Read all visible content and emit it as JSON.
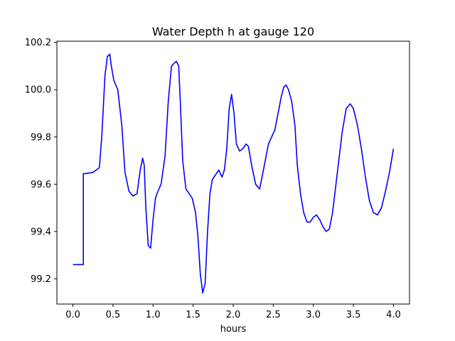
{
  "chart_data": {
    "type": "line",
    "title": "Water Depth h at gauge 120",
    "xlabel": "hours",
    "ylabel": "",
    "xlim": [
      -0.2,
      4.2
    ],
    "ylim": [
      99.093,
      100.205
    ],
    "xticks": [
      0.0,
      0.5,
      1.0,
      1.5,
      2.0,
      2.5,
      3.0,
      3.5,
      4.0
    ],
    "xtick_labels": [
      "0.0",
      "0.5",
      "1.0",
      "1.5",
      "2.0",
      "2.5",
      "3.0",
      "3.5",
      "4.0"
    ],
    "yticks": [
      99.2,
      99.4,
      99.6,
      99.8,
      100.0,
      100.2
    ],
    "ytick_labels": [
      "99.2",
      "99.4",
      "99.6",
      "99.8",
      "100.0",
      "100.2"
    ],
    "grid": false,
    "legend": "none",
    "series": [
      {
        "color": "#0000ff",
        "x": [
          0.0,
          0.13,
          0.13,
          0.16,
          0.25,
          0.33,
          0.36,
          0.4,
          0.43,
          0.46,
          0.48,
          0.51,
          0.56,
          0.61,
          0.65,
          0.7,
          0.75,
          0.8,
          0.84,
          0.87,
          0.89,
          0.91,
          0.94,
          0.97,
          1.0,
          1.03,
          1.06,
          1.1,
          1.15,
          1.19,
          1.23,
          1.26,
          1.29,
          1.32,
          1.34,
          1.37,
          1.41,
          1.45,
          1.49,
          1.53,
          1.56,
          1.59,
          1.62,
          1.65,
          1.68,
          1.71,
          1.74,
          1.78,
          1.82,
          1.86,
          1.89,
          1.92,
          1.95,
          1.98,
          2.01,
          2.04,
          2.08,
          2.12,
          2.16,
          2.19,
          2.23,
          2.28,
          2.33,
          2.36,
          2.4,
          2.44,
          2.48,
          2.52,
          2.56,
          2.6,
          2.63,
          2.66,
          2.69,
          2.73,
          2.77,
          2.8,
          2.84,
          2.88,
          2.92,
          2.96,
          3.0,
          3.04,
          3.08,
          3.12,
          3.16,
          3.2,
          3.24,
          3.3,
          3.36,
          3.41,
          3.46,
          3.5,
          3.55,
          3.6,
          3.65,
          3.7,
          3.75,
          3.8,
          3.85,
          3.9,
          3.95,
          4.0
        ],
        "y": [
          99.26,
          99.26,
          99.645,
          99.645,
          99.65,
          99.67,
          99.8,
          100.06,
          100.14,
          100.15,
          100.1,
          100.04,
          100.0,
          99.85,
          99.65,
          99.57,
          99.55,
          99.56,
          99.66,
          99.71,
          99.68,
          99.5,
          99.34,
          99.33,
          99.45,
          99.54,
          99.57,
          99.6,
          99.72,
          99.95,
          100.1,
          100.11,
          100.12,
          100.1,
          99.95,
          99.7,
          99.58,
          99.56,
          99.54,
          99.48,
          99.38,
          99.22,
          99.14,
          99.18,
          99.4,
          99.56,
          99.62,
          99.64,
          99.66,
          99.63,
          99.66,
          99.75,
          99.92,
          99.98,
          99.9,
          99.77,
          99.74,
          99.75,
          99.77,
          99.76,
          99.68,
          99.6,
          99.58,
          99.63,
          99.7,
          99.77,
          99.8,
          99.83,
          99.9,
          99.97,
          100.01,
          100.02,
          100.0,
          99.95,
          99.85,
          99.68,
          99.56,
          99.48,
          99.44,
          99.44,
          99.46,
          99.47,
          99.45,
          99.42,
          99.4,
          99.41,
          99.48,
          99.65,
          99.82,
          99.92,
          99.94,
          99.92,
          99.85,
          99.75,
          99.63,
          99.53,
          99.48,
          99.47,
          99.5,
          99.57,
          99.65,
          99.75
        ]
      }
    ]
  }
}
